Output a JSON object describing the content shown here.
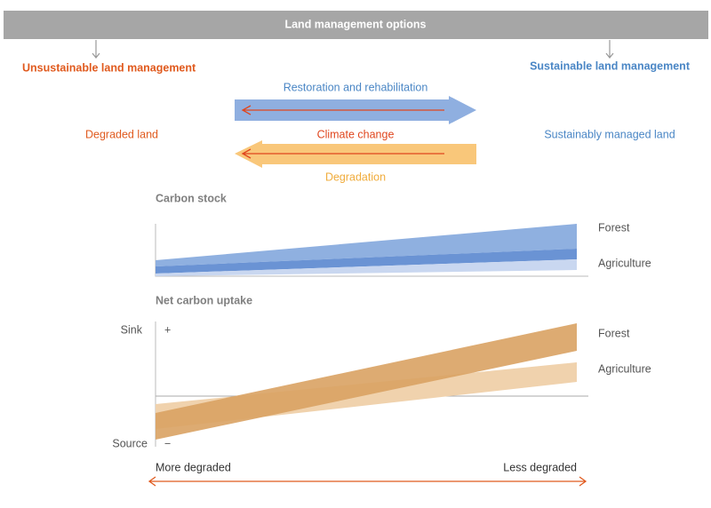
{
  "header": {
    "title": "Land management options"
  },
  "sides": {
    "left": "Unsustainable land management",
    "right": "Sustainable land management"
  },
  "states": {
    "left": "Degraded land",
    "right": "Sustainably managed land"
  },
  "arrows": {
    "restoration": "Restoration and rehabilitation",
    "climate": "Climate change",
    "degradation": "Degradation"
  },
  "carbon_stock": {
    "title": "Carbon stock",
    "forest": "Forest",
    "agriculture": "Agriculture"
  },
  "net_uptake": {
    "title": "Net carbon uptake",
    "sink": "Sink",
    "plus": "+",
    "source": "Source",
    "minus": "−",
    "forest": "Forest",
    "agriculture": "Agriculture"
  },
  "axis": {
    "left": "More degraded",
    "right": "Less degraded"
  }
}
